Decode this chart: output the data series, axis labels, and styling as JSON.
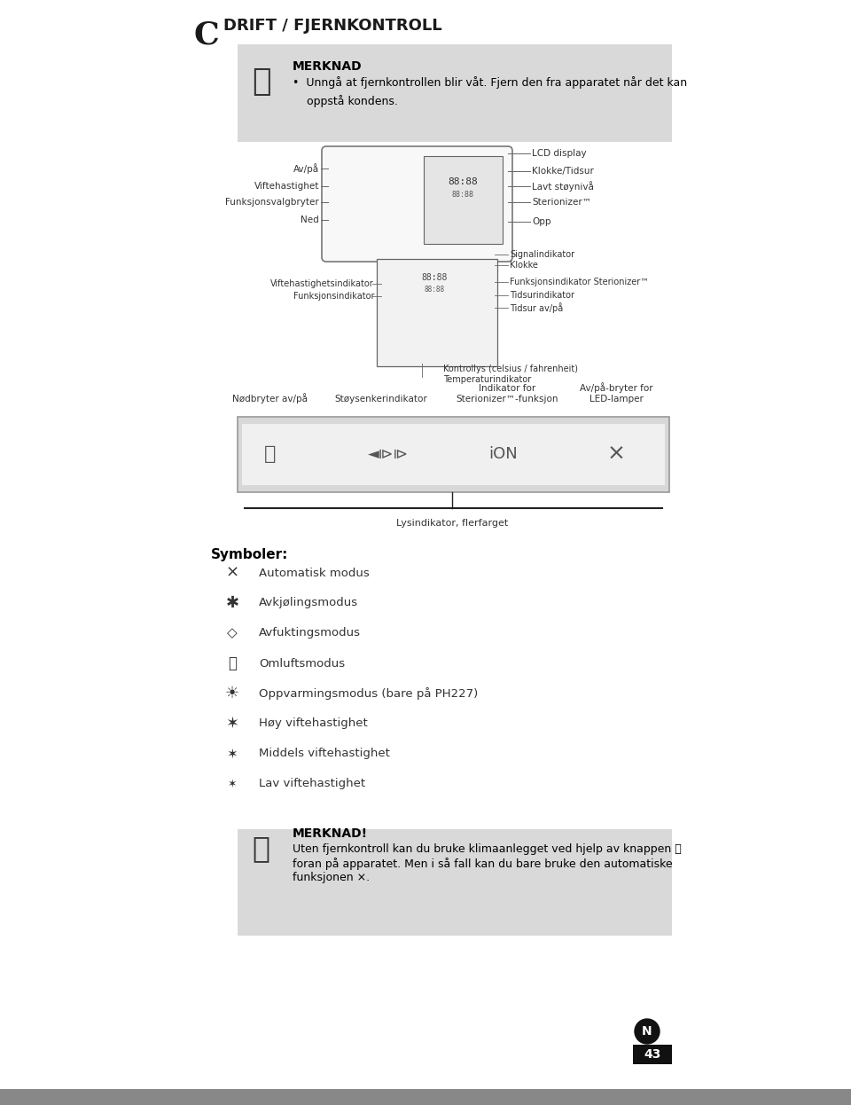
{
  "page_bg": "#ffffff",
  "title_letter": "C",
  "title_text": "DRIFT / FJERNKONTROLL",
  "merknad1_title": "MERKNAD",
  "merknad1_bullet": "•  Unngå at fjernkontrollen blir våt. Fjern den fra apparatet når det kan\n    oppstå kondens.",
  "merknad2_title": "MERKNAD!",
  "merknad2_text1": "Uten fjernkontroll kan du bruke klimaanlegget ved hjelp av knappen ⏻",
  "merknad2_text2": "foran på apparatet. Men i så fall kan du bare bruke den automatiske",
  "merknad2_text3": "funksjonen ⨯.",
  "box_bg": "#d9d9d9",
  "remote_labels_left": [
    "Av/på",
    "Viftehastighet",
    "Funksjonsvalgbryter",
    "Ned"
  ],
  "remote_labels_right": [
    "LCD display",
    "Klokke/Tidsur",
    "Lavt støynivå",
    "Sterionizer™",
    "Opp"
  ],
  "diagram_labels_top": [
    "Signalindikator",
    "Klokke"
  ],
  "diagram_labels_right": [
    "Funksjonsindikator Sterionizer™",
    "Tidsurindikator",
    "Tidsur av/på"
  ],
  "diagram_labels_left": [
    "Viftehastighetsindikator",
    "Funksjonsindikator"
  ],
  "diagram_labels_bottom": [
    "Kontrollys (celsius / fahrenheit)",
    "Temperaturindikator"
  ],
  "bottom_labels": [
    "Nødbryter av/på",
    "Støysenkerindikator",
    "Indikator for\nSterionizer™-funksjon",
    "Av/på-bryter for\nLED-lamper"
  ],
  "lysindikator": "Lysindikator, flerfarget",
  "symboler_title": "Symboler:",
  "sym_icons": [
    "⨯",
    "✱",
    "◇",
    "➿",
    "☀",
    "✶",
    "✶",
    "✶"
  ],
  "sym_texts": [
    "Automatisk modus",
    "Avkjølingsmodus",
    "Avfuktingsmodus",
    "Omluftsmodus",
    "Oppvarmingsmodus (bare på PH227)",
    "Høy viftehastighet",
    "Middels viftehastighet",
    "Lav viftehastighet"
  ],
  "page_num": "43",
  "gray_bar_color": "#888888",
  "black_color": "#111111",
  "dark_text": "#222222",
  "mid_text": "#444444",
  "light_text": "#666666"
}
